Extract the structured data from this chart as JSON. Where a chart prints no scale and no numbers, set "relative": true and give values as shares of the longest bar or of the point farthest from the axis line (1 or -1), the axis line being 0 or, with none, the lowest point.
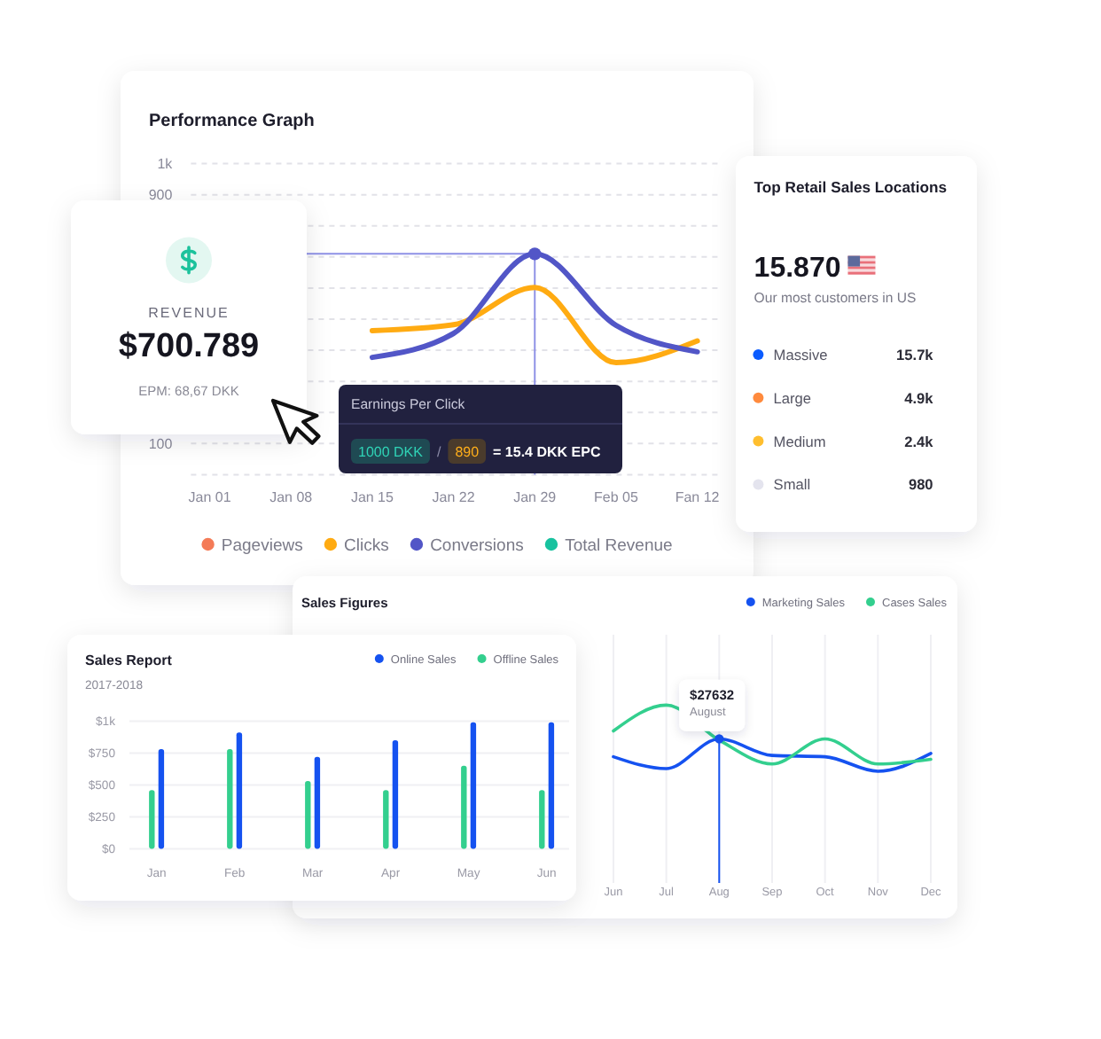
{
  "chart_data": [
    {
      "type": "line",
      "title": "Performance Graph",
      "categories": [
        "Jan 01",
        "Jan 08",
        "Jan 15",
        "Jan 22",
        "Jan 29",
        "Feb 05",
        "Fan 12"
      ],
      "series": [
        {
          "name": "Pageviews",
          "color": "#f47b57",
          "values": [
            null,
            null,
            null,
            null,
            null,
            null,
            null
          ]
        },
        {
          "name": "Clicks",
          "color": "#ffab12",
          "values": [
            null,
            null,
            463,
            482,
            602,
            360,
            430
          ]
        },
        {
          "name": "Conversions",
          "color": "#5256c7",
          "values": [
            null,
            null,
            377,
            454,
            710,
            480,
            395
          ]
        },
        {
          "name": "Total Revenue",
          "color": "#18c29f",
          "values": [
            null,
            null,
            null,
            null,
            null,
            null,
            null
          ]
        }
      ],
      "ylim": [
        0,
        1000
      ],
      "yticks": [
        {
          "value": 0,
          "label": null
        },
        100,
        {
          "value": 200,
          "label": null
        },
        {
          "value": 300,
          "label": null
        },
        {
          "value": 400,
          "label": null
        },
        {
          "value": 500,
          "label": null
        },
        {
          "value": 600,
          "label": null
        },
        {
          "value": 700,
          "label": null
        },
        {
          "value": 800,
          "label": null
        },
        900,
        {
          "value": 1000,
          "label": "1k"
        }
      ],
      "grid": "y",
      "legend": "bottom",
      "ref_lines": [
        {
          "axis": "x",
          "value": "Jan 29",
          "color": "#8e91e6"
        },
        {
          "axis": "y",
          "value": 710,
          "color": "#8e91e6"
        }
      ],
      "annotations": [
        "Earnings Per Click",
        "1000 DKK",
        "/",
        "890",
        "= 15.4 DKK EPC"
      ]
    },
    {
      "type": "other",
      "title": "REVENUE",
      "annotations": [
        "$700.789",
        "EPM: 68,67 DKK"
      ]
    },
    {
      "type": "other",
      "title": "Top Retail Sales Locations",
      "annotations": [
        "15.870",
        "Our most customers in US"
      ],
      "categories": [
        "Massive",
        "Large",
        "Medium",
        "Small"
      ],
      "value_labels": [
        "15.7k",
        "4.9k",
        "2.4k",
        "980"
      ],
      "colors": [
        "#0b5cff",
        "#ff8a3d",
        "#ffbe2e",
        "#e4e4ee"
      ]
    },
    {
      "type": "line",
      "title": "Sales Figures",
      "categories": [
        null,
        null,
        null,
        null,
        null,
        "Jun",
        "Jul",
        "Aug",
        "Sep",
        "Oct",
        "Nov",
        "Dec"
      ],
      "relative": true,
      "series": [
        {
          "name": "Marketing Sales",
          "color": "#1552f0",
          "values": [
            null,
            null,
            null,
            null,
            null,
            0.22,
            0.04,
            0.49,
            0.24,
            0.22,
            0,
            0.27
          ]
        },
        {
          "name": "Cases Sales",
          "color": "#33cf8e",
          "values": [
            null,
            null,
            null,
            null,
            null,
            0.61,
            1,
            0.47,
            0.11,
            0.49,
            0.11,
            0.18
          ]
        }
      ],
      "grid": "x",
      "legend": "top right",
      "ref_lines": [
        {
          "axis": "x",
          "value": "Aug",
          "color": "#1552f0"
        }
      ],
      "annotations": [
        {
          "text": "$27632",
          "x": "Aug",
          "y": 0.49
        },
        "August"
      ]
    },
    {
      "type": "bar",
      "title": "Sales Report",
      "subtitle": "2017-2018",
      "categories": [
        "Jan",
        "Feb",
        "Mar",
        "Apr",
        "May",
        "Jun"
      ],
      "series": [
        {
          "name": "Online Sales",
          "color": "#1552f0",
          "values": [
            780,
            910,
            720,
            850,
            990,
            990
          ]
        },
        {
          "name": "Offline Sales",
          "color": "#33cf8e",
          "values": [
            460,
            780,
            530,
            460,
            650,
            460
          ]
        }
      ],
      "ylim": [
        0,
        1000
      ],
      "yticks": [
        {
          "value": 0,
          "label": "$0"
        },
        {
          "value": 250,
          "label": "$250"
        },
        {
          "value": 500,
          "label": "$500"
        },
        {
          "value": 750,
          "label": "$750"
        },
        {
          "value": 1000,
          "label": "$1k"
        }
      ],
      "grid": "y",
      "legend": "top right"
    }
  ]
}
